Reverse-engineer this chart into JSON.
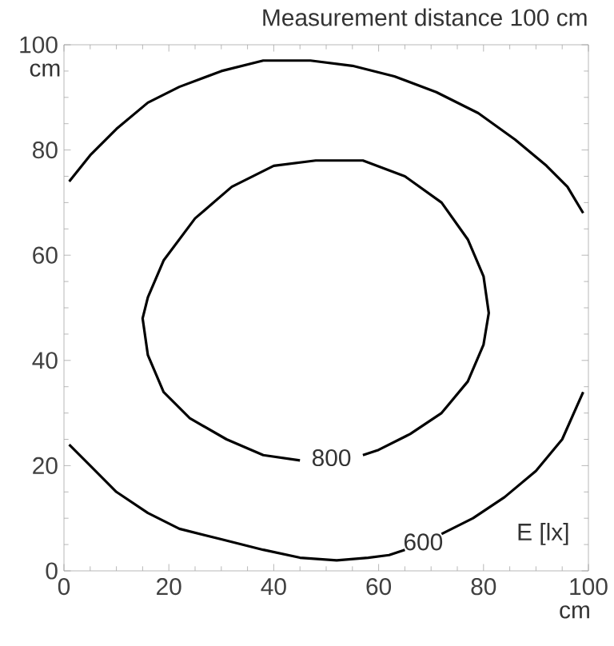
{
  "chart_data": {
    "type": "line",
    "title": "Measurement distance 100 cm",
    "xlabel": "cm",
    "ylabel": "cm",
    "xlim": [
      0,
      100
    ],
    "ylim": [
      0,
      100
    ],
    "xticks": [
      0,
      20,
      40,
      60,
      80,
      100
    ],
    "yticks": [
      0,
      20,
      40,
      60,
      80,
      100
    ],
    "grid": false,
    "marker": "none",
    "line_style": "solid",
    "annotations": [
      "E [lx]"
    ],
    "series": [
      {
        "name": "800",
        "color": "#000000",
        "x": [
          57,
          60,
          66,
          72,
          77,
          80,
          81,
          80,
          77,
          72,
          65,
          57,
          48,
          40,
          32,
          25,
          19,
          16,
          15,
          16,
          19,
          24,
          31,
          38,
          45
        ],
        "values": [
          22,
          23,
          26,
          30,
          36,
          43,
          49,
          56,
          63,
          70,
          75,
          78,
          78,
          77,
          73,
          67,
          59,
          52,
          48,
          41,
          34,
          29,
          25,
          22,
          21
        ]
      },
      {
        "color": "#000000",
        "x": [
          1,
          5,
          10,
          16,
          22,
          30,
          38,
          47,
          55,
          63,
          71,
          79,
          86,
          92,
          96,
          99
        ],
        "values": [
          74,
          79,
          84,
          89,
          92,
          95,
          97,
          97,
          96,
          94,
          91,
          87,
          82,
          77,
          73,
          68
        ]
      },
      {
        "name": "600",
        "color": "#000000",
        "x": [
          1,
          5,
          10,
          16,
          22,
          30,
          38,
          45,
          52,
          58,
          62,
          65,
          68,
          72,
          78,
          84,
          90,
          95,
          99
        ],
        "values": [
          24,
          20,
          15,
          11,
          8,
          6,
          4,
          2.5,
          2,
          2.5,
          3,
          4,
          null,
          7,
          10,
          14,
          19,
          25,
          34
        ]
      }
    ]
  }
}
